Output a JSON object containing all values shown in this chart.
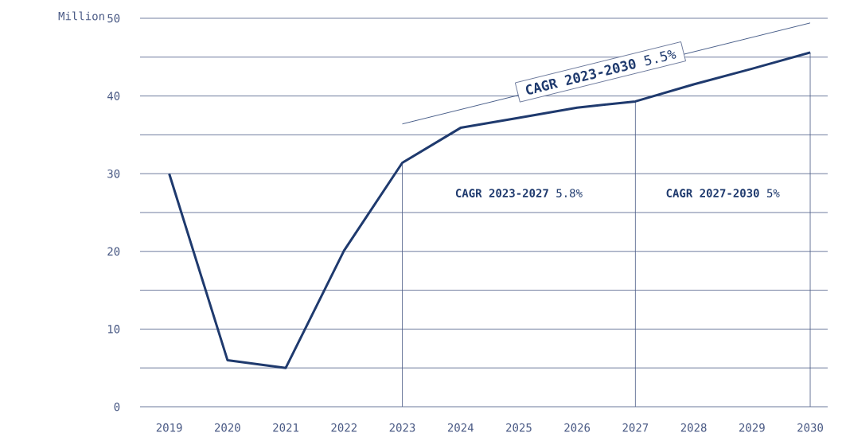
{
  "chart_data": {
    "type": "line",
    "ylabel": "Million",
    "x": [
      2019,
      2020,
      2021,
      2022,
      2023,
      2024,
      2025,
      2026,
      2027,
      2028,
      2029,
      2030
    ],
    "series": [
      {
        "values": [
          30,
          6,
          5,
          20.1,
          31.4,
          35.9,
          37.2,
          38.5,
          39.3,
          41.5,
          43.5,
          45.6
        ],
        "color": "#1f3a6e"
      },
      {
        "type": "line",
        "x": [
          2023,
          2030
        ],
        "values": [
          36.4,
          49.4
        ],
        "color": "#1f3a6e",
        "line_style": "solid"
      }
    ],
    "xlim": [
      2018.5,
      2030.3
    ],
    "xticks": [
      2019,
      2020,
      2021,
      2022,
      2023,
      2024,
      2025,
      2026,
      2027,
      2028,
      2029,
      2030
    ],
    "ylim": [
      0,
      50
    ],
    "yticks": [
      0,
      {
        "value": 5,
        "label": null
      },
      10,
      {
        "value": 15,
        "label": null
      },
      20,
      {
        "value": 25,
        "label": null
      },
      30,
      {
        "value": 35,
        "label": null
      },
      40,
      {
        "value": 45,
        "label": null
      },
      50
    ],
    "grid": "y",
    "marker": "none",
    "ref_lines": [
      {
        "axis": "x",
        "value": 2023
      },
      {
        "axis": "x",
        "value": 2027
      },
      {
        "axis": "x",
        "value": 2030
      }
    ],
    "annotations": [
      {
        "text": "**CAGR 2023-2030** 5.5%",
        "x": 2026.4,
        "y": 43.1
      },
      "**CAGR 2023-2027** 5.8%",
      "**CAGR 2027-2030** 5%"
    ]
  }
}
